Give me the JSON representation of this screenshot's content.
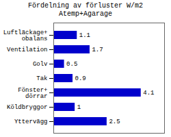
{
  "chart_data": {
    "type": "bar",
    "orientation": "horizontal",
    "title": "Fördelning av förluster W/m2 Atemp+Agarage",
    "categories": [
      "Luftläckage+\nobalans",
      "Ventilation",
      "Golv",
      "Tak",
      "Fönster+\ndörrar",
      "Köldbryggor",
      "Yttervägg"
    ],
    "values": [
      1.1,
      1.7,
      0.5,
      0.9,
      4.1,
      1.0,
      2.5
    ],
    "color": "#0000cc",
    "xlim": [
      0,
      5.2
    ],
    "data_labels": true,
    "tick_labels": "y"
  }
}
